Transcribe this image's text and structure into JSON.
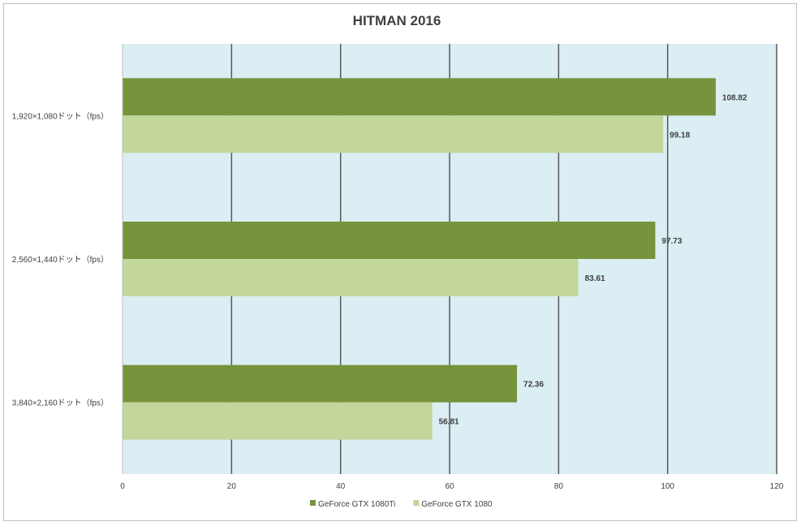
{
  "chart_data": {
    "type": "bar",
    "orientation": "horizontal",
    "title": "HITMAN 2016",
    "categories": [
      "1,920×1,080ドット（fps）",
      "2,560×1,440ドット（fps）",
      "3,840×2,160ドット（fps）"
    ],
    "series": [
      {
        "name": "GeForce GTX 1080Ti",
        "color": "#77933c",
        "values": [
          108.82,
          97.73,
          72.36
        ]
      },
      {
        "name": "GeForce GTX 1080",
        "color": "#c3d69b",
        "values": [
          99.18,
          83.61,
          56.81
        ]
      }
    ],
    "xlim": [
      0,
      120
    ],
    "xticks": [
      0,
      20,
      40,
      60,
      80,
      100,
      120
    ],
    "plot_background": "#daeef3",
    "grid": true,
    "legend": "bottom"
  }
}
